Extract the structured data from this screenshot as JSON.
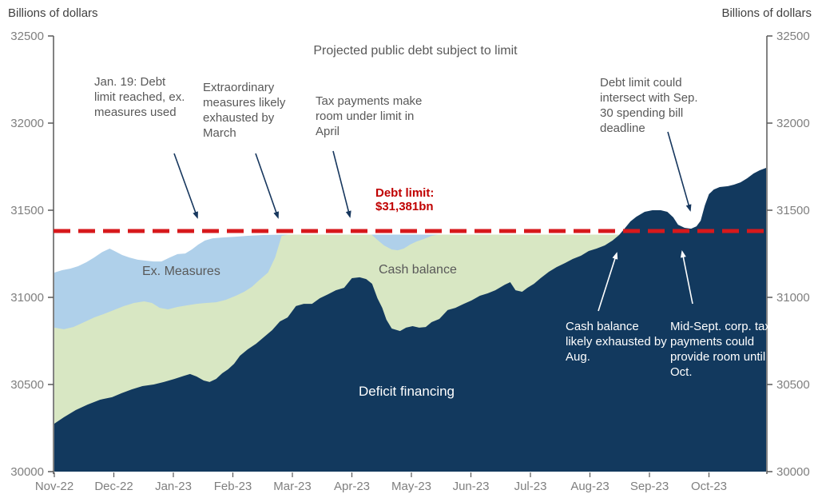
{
  "header": {
    "billions_left": "Billions of dollars",
    "billions_right": "Billions of dollars"
  },
  "chart_title": "Projected public debt subject to limit",
  "annotations": {
    "jan19": "Jan. 19: Debt limit reached, ex. measures used",
    "extraordinary": "Extraordinary measures likely exhausted by March",
    "tax_april": "Tax payments make room under limit in April",
    "debt_limit_line1": "Debt limit:",
    "debt_limit_line2": "$31,381bn",
    "sep30": "Debt limit could intersect with Sep. 30 spending bill deadline",
    "cash_aug": "Cash balance likely exhausted by Aug.",
    "mid_sept": "Mid-Sept. corp. tax payments could provide room until Oct."
  },
  "area_labels": {
    "ex_measures": "Ex. Measures",
    "cash_balance": "Cash balance",
    "deficit_financing": "Deficit financing"
  },
  "colors": {
    "deficit_financing": "#12395E",
    "cash_balance": "#D8E7C3",
    "ex_measures": "#AFD0EA",
    "debt_limit": "#D7191C",
    "debt_limit_text": "#C00000",
    "annotation_arrow": "#17375E",
    "white_arrow": "#FFFFFF",
    "text_gray": "#595959",
    "axis_gray": "#7F7F7F"
  },
  "chart_data": {
    "type": "area",
    "title": "Projected public debt subject to limit",
    "ylabel": "Billions of dollars",
    "ylim": [
      30000,
      32500
    ],
    "y_ticks": [
      30000,
      30500,
      31000,
      31500,
      32000,
      32500
    ],
    "x_tick_labels": [
      "Nov-22",
      "Dec-22",
      "Jan-23",
      "Feb-23",
      "Mar-23",
      "Apr-23",
      "May-23",
      "Jun-23",
      "Jul-23",
      "Aug-23",
      "Sep-23",
      "Oct-23"
    ],
    "x_unit": "months since Nov-22 tick",
    "values_are": "stacked top-of-band level, billions of dollars",
    "grid": false,
    "legend_position": "labels drawn inside areas",
    "debt_limit_value": 31381,
    "series": [
      {
        "name": "Ex. Measures",
        "color": "#AFD0EA",
        "points": [
          [
            0,
            31142
          ],
          [
            0.13,
            31156
          ],
          [
            0.27,
            31165
          ],
          [
            0.4,
            31179
          ],
          [
            0.54,
            31202
          ],
          [
            0.67,
            31229
          ],
          [
            0.81,
            31261
          ],
          [
            0.93,
            31280
          ],
          [
            1.04,
            31261
          ],
          [
            1.14,
            31243
          ],
          [
            1.26,
            31229
          ],
          [
            1.4,
            31216
          ],
          [
            1.53,
            31211
          ],
          [
            1.67,
            31206
          ],
          [
            1.8,
            31206
          ],
          [
            1.94,
            31229
          ],
          [
            2.07,
            31248
          ],
          [
            2.2,
            31252
          ],
          [
            2.31,
            31275
          ],
          [
            2.42,
            31303
          ],
          [
            2.53,
            31326
          ],
          [
            2.66,
            31339
          ],
          [
            2.85,
            31344
          ],
          [
            3.05,
            31348
          ],
          [
            3.25,
            31353
          ],
          [
            3.52,
            31358
          ],
          [
            3.82,
            31360
          ],
          [
            11.96,
            31360
          ]
        ]
      },
      {
        "name": "Cash balance",
        "color": "#D8E7C3",
        "points": [
          [
            0,
            30826
          ],
          [
            0.16,
            30817
          ],
          [
            0.32,
            30830
          ],
          [
            0.5,
            30858
          ],
          [
            0.67,
            30885
          ],
          [
            0.83,
            30904
          ],
          [
            1,
            30927
          ],
          [
            1.17,
            30950
          ],
          [
            1.34,
            30968
          ],
          [
            1.51,
            30977
          ],
          [
            1.64,
            30968
          ],
          [
            1.77,
            30940
          ],
          [
            1.91,
            30931
          ],
          [
            2.07,
            30945
          ],
          [
            2.23,
            30954
          ],
          [
            2.39,
            30963
          ],
          [
            2.55,
            30968
          ],
          [
            2.72,
            30972
          ],
          [
            2.88,
            30986
          ],
          [
            3.05,
            31009
          ],
          [
            3.19,
            31032
          ],
          [
            3.32,
            31060
          ],
          [
            3.45,
            31101
          ],
          [
            3.59,
            31142
          ],
          [
            3.71,
            31229
          ],
          [
            3.82,
            31353
          ],
          [
            3.93,
            31360
          ],
          [
            5.33,
            31360
          ],
          [
            5.43,
            31330
          ],
          [
            5.54,
            31298
          ],
          [
            5.67,
            31275
          ],
          [
            5.77,
            31270
          ],
          [
            5.87,
            31280
          ],
          [
            5.98,
            31303
          ],
          [
            6.09,
            31321
          ],
          [
            6.21,
            31335
          ],
          [
            6.34,
            31353
          ],
          [
            6.45,
            31360
          ],
          [
            11.96,
            31360
          ]
        ]
      },
      {
        "name": "Deficit financing",
        "color": "#12395E",
        "points": [
          [
            0,
            30275
          ],
          [
            0.16,
            30312
          ],
          [
            0.36,
            30353
          ],
          [
            0.56,
            30385
          ],
          [
            0.77,
            30413
          ],
          [
            0.97,
            30427
          ],
          [
            1.13,
            30450
          ],
          [
            1.3,
            30472
          ],
          [
            1.48,
            30491
          ],
          [
            1.67,
            30500
          ],
          [
            1.84,
            30514
          ],
          [
            2.02,
            30532
          ],
          [
            2.18,
            30550
          ],
          [
            2.28,
            30560
          ],
          [
            2.39,
            30546
          ],
          [
            2.51,
            30523
          ],
          [
            2.61,
            30514
          ],
          [
            2.72,
            30532
          ],
          [
            2.82,
            30564
          ],
          [
            2.92,
            30587
          ],
          [
            3.02,
            30619
          ],
          [
            3.12,
            30665
          ],
          [
            3.25,
            30702
          ],
          [
            3.39,
            30734
          ],
          [
            3.52,
            30771
          ],
          [
            3.66,
            30812
          ],
          [
            3.79,
            30862
          ],
          [
            3.92,
            30885
          ],
          [
            4.06,
            30950
          ],
          [
            4.19,
            30963
          ],
          [
            4.33,
            30963
          ],
          [
            4.46,
            30995
          ],
          [
            4.6,
            31018
          ],
          [
            4.73,
            31041
          ],
          [
            4.87,
            31055
          ],
          [
            5,
            31110
          ],
          [
            5.13,
            31115
          ],
          [
            5.24,
            31105
          ],
          [
            5.34,
            31078
          ],
          [
            5.43,
            30995
          ],
          [
            5.51,
            30940
          ],
          [
            5.58,
            30872
          ],
          [
            5.67,
            30821
          ],
          [
            5.81,
            30807
          ],
          [
            5.91,
            30826
          ],
          [
            6.02,
            30835
          ],
          [
            6.13,
            30826
          ],
          [
            6.24,
            30830
          ],
          [
            6.34,
            30858
          ],
          [
            6.47,
            30876
          ],
          [
            6.61,
            30927
          ],
          [
            6.74,
            30940
          ],
          [
            6.88,
            30963
          ],
          [
            7.01,
            30982
          ],
          [
            7.15,
            31009
          ],
          [
            7.28,
            31023
          ],
          [
            7.41,
            31041
          ],
          [
            7.57,
            31073
          ],
          [
            7.66,
            31087
          ],
          [
            7.75,
            31041
          ],
          [
            7.86,
            31032
          ],
          [
            7.95,
            31055
          ],
          [
            8.06,
            31078
          ],
          [
            8.17,
            31110
          ],
          [
            8.31,
            31147
          ],
          [
            8.44,
            31174
          ],
          [
            8.58,
            31197
          ],
          [
            8.71,
            31220
          ],
          [
            8.85,
            31239
          ],
          [
            8.98,
            31266
          ],
          [
            9.11,
            31280
          ],
          [
            9.25,
            31298
          ],
          [
            9.38,
            31326
          ],
          [
            9.49,
            31358
          ],
          [
            9.57,
            31390
          ],
          [
            9.68,
            31436
          ],
          [
            9.78,
            31463
          ],
          [
            9.92,
            31491
          ],
          [
            10.05,
            31500
          ],
          [
            10.19,
            31500
          ],
          [
            10.3,
            31491
          ],
          [
            10.4,
            31459
          ],
          [
            10.48,
            31417
          ],
          [
            10.59,
            31399
          ],
          [
            10.7,
            31394
          ],
          [
            10.79,
            31408
          ],
          [
            10.86,
            31440
          ],
          [
            10.93,
            31527
          ],
          [
            11,
            31592
          ],
          [
            11.08,
            31619
          ],
          [
            11.18,
            31633
          ],
          [
            11.32,
            31638
          ],
          [
            11.42,
            31647
          ],
          [
            11.53,
            31660
          ],
          [
            11.64,
            31683
          ],
          [
            11.75,
            31711
          ],
          [
            11.85,
            31729
          ],
          [
            11.96,
            31743
          ]
        ]
      }
    ]
  }
}
